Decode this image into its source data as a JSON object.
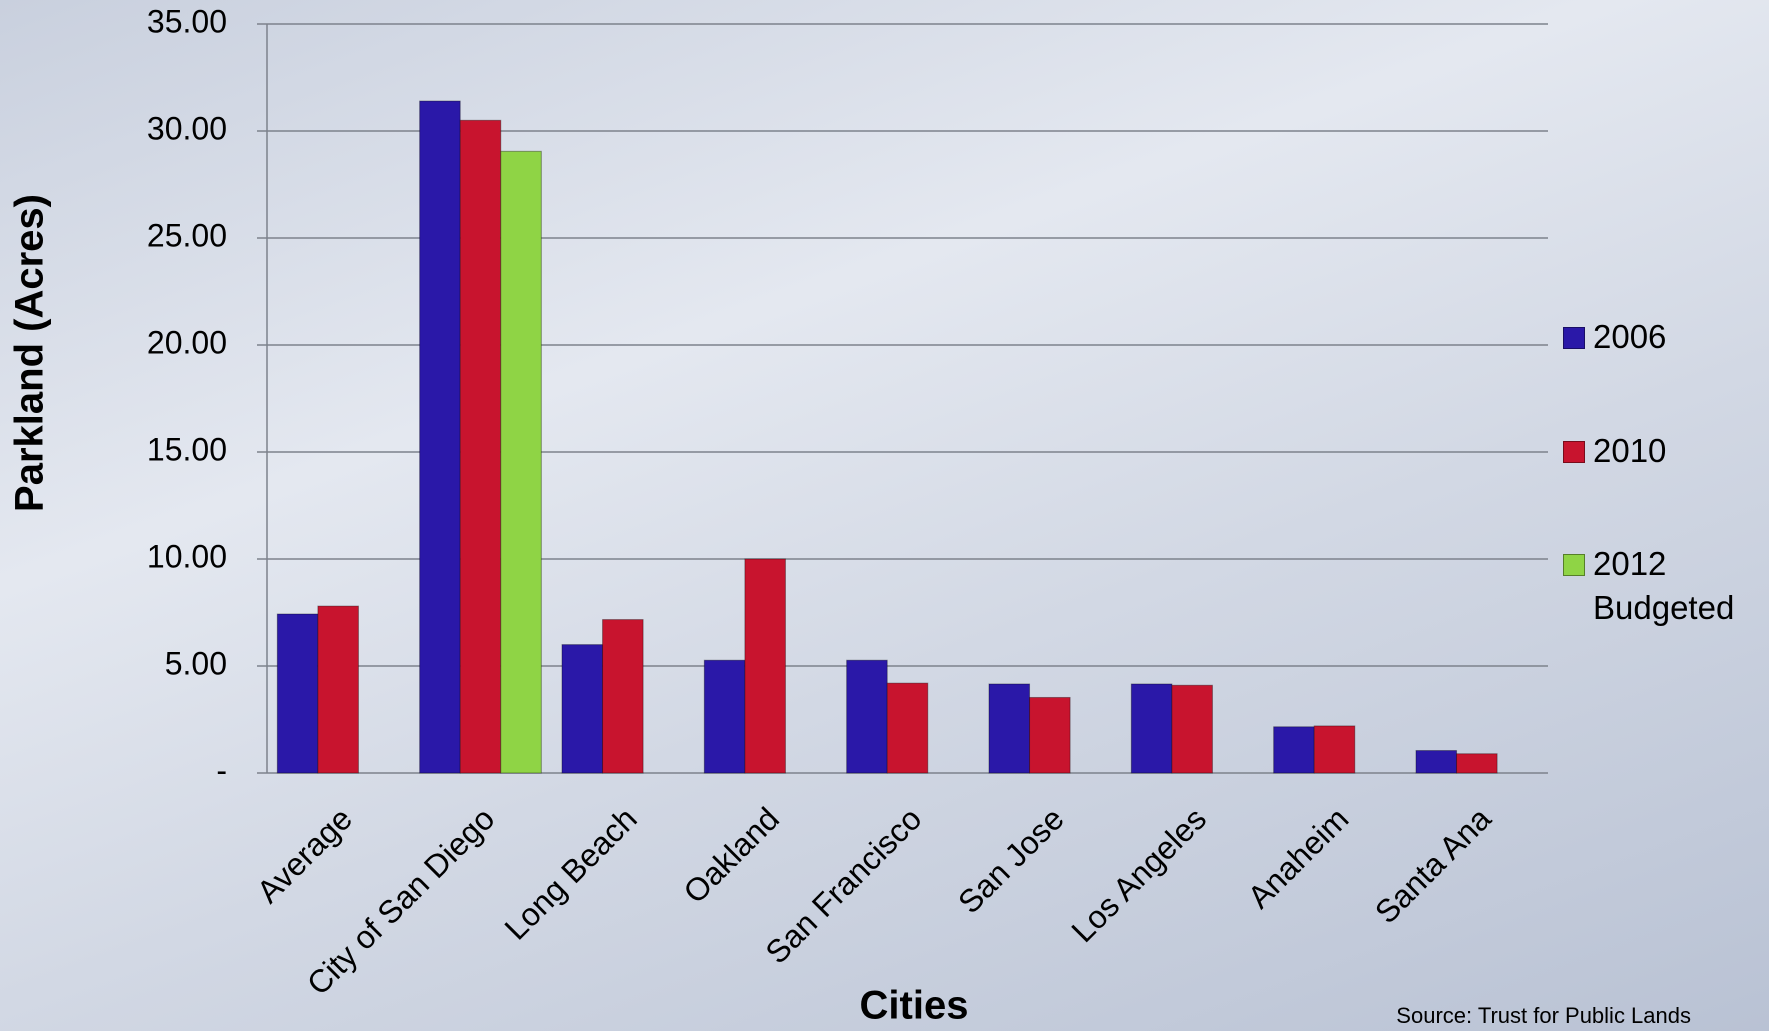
{
  "chart_data": {
    "type": "bar",
    "y_label": "Parkland (Acres)",
    "x_label": "Cities",
    "source": "Source: Trust for Public Lands",
    "categories": [
      "Average",
      "City of San Diego",
      "Long Beach",
      "Oakland",
      "San Francisco",
      "San Jose",
      "Los Angeles",
      "Anaheim",
      "Santa Ana"
    ],
    "series": [
      {
        "name": "2006",
        "color": "#2a18a8",
        "values": [
          7.43,
          31.4,
          6.0,
          5.27,
          5.27,
          4.16,
          4.16,
          2.16,
          1.05
        ]
      },
      {
        "name": "2010",
        "color": "#c8142e",
        "values": [
          7.8,
          30.5,
          7.17,
          10.0,
          4.2,
          3.53,
          4.1,
          2.2,
          0.9
        ]
      },
      {
        "name": "2012 Budgeted",
        "color": "#8fd445",
        "values": [
          null,
          29.05,
          null,
          null,
          null,
          null,
          null,
          null,
          null
        ]
      }
    ],
    "ylim": [
      0,
      35
    ],
    "yticks": [
      {
        "value": 0,
        "label": "-"
      },
      {
        "value": 5,
        "label": "5.00"
      },
      {
        "value": 10,
        "label": "10.00"
      },
      {
        "value": 15,
        "label": "15.00"
      },
      {
        "value": 20,
        "label": "20.00"
      },
      {
        "value": 25,
        "label": "25.00"
      },
      {
        "value": 30,
        "label": "30.00"
      },
      {
        "value": 35,
        "label": "35.00"
      }
    ],
    "grid": true,
    "legend_position": "right"
  }
}
